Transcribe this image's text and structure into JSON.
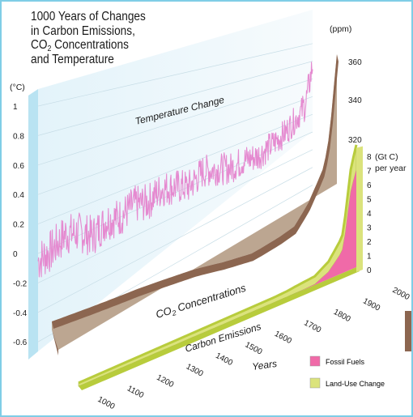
{
  "chart_data": {
    "type": "area",
    "title": [
      "1000 Years of Changes",
      "in Carbon Emissions,",
      "CO2 Concentrations",
      "and Temperature"
    ],
    "x_axis": {
      "label": "Years",
      "ticks": [
        1000,
        1100,
        1200,
        1300,
        1400,
        1500,
        1600,
        1700,
        1800,
        1900,
        2000
      ],
      "range": [
        1000,
        2000
      ]
    },
    "temperature": {
      "label": "Temperature Change",
      "unit": "(°C)",
      "ticks": [
        "1",
        "0.8",
        "0.6",
        "0.4",
        "0.2",
        "0",
        "-0.2",
        "-0.4",
        "-0.6"
      ],
      "range": [
        -0.6,
        1.0
      ],
      "color": "#e58ad0",
      "keypoints": [
        [
          1000,
          -0.05
        ],
        [
          1050,
          -0.02
        ],
        [
          1100,
          0.05
        ],
        [
          1150,
          0.02
        ],
        [
          1200,
          -0.05
        ],
        [
          1250,
          0.02
        ],
        [
          1300,
          0.0
        ],
        [
          1350,
          0.05
        ],
        [
          1400,
          0.02
        ],
        [
          1450,
          0.08
        ],
        [
          1500,
          0.05
        ],
        [
          1550,
          0.0
        ],
        [
          1600,
          0.08
        ],
        [
          1650,
          0.05
        ],
        [
          1700,
          0.0
        ],
        [
          1750,
          0.02
        ],
        [
          1800,
          0.0
        ],
        [
          1850,
          0.05
        ],
        [
          1900,
          0.12
        ],
        [
          1950,
          0.25
        ],
        [
          1975,
          0.35
        ],
        [
          2000,
          0.75
        ]
      ]
    },
    "co2": {
      "label": "CO2 Concentrations",
      "unit": "(ppm)",
      "ticks": [
        320,
        340,
        360
      ],
      "color": "#8c6650",
      "keypoints": [
        [
          1000,
          280
        ],
        [
          1100,
          281
        ],
        [
          1200,
          282
        ],
        [
          1300,
          283
        ],
        [
          1400,
          282
        ],
        [
          1500,
          281
        ],
        [
          1600,
          278
        ],
        [
          1700,
          277
        ],
        [
          1800,
          282
        ],
        [
          1850,
          285
        ],
        [
          1900,
          296
        ],
        [
          1950,
          311
        ],
        [
          1960,
          317
        ],
        [
          1970,
          325
        ],
        [
          1980,
          338
        ],
        [
          1990,
          354
        ],
        [
          2000,
          369
        ]
      ]
    },
    "emissions": {
      "label": "Carbon Emissions",
      "unit": "(Gt C)",
      "unit2": "per year",
      "ticks": [
        0,
        1,
        2,
        3,
        4,
        5,
        6,
        7,
        8
      ],
      "range": [
        0,
        8
      ],
      "series": [
        {
          "name": "Fossil Fuels",
          "color": "#f06aa8",
          "values": [
            [
              1000,
              0
            ],
            [
              1750,
              0
            ],
            [
              1800,
              0.01
            ],
            [
              1850,
              0.05
            ],
            [
              1900,
              0.5
            ],
            [
              1920,
              0.9
            ],
            [
              1940,
              1.3
            ],
            [
              1950,
              1.6
            ],
            [
              1960,
              2.6
            ],
            [
              1970,
              4.0
            ],
            [
              1980,
              5.3
            ],
            [
              1990,
              6.0
            ],
            [
              2000,
              6.6
            ]
          ]
        },
        {
          "name": "Land-Use Change",
          "color": "#dbe37c",
          "values": [
            [
              1000,
              0.25
            ],
            [
              1700,
              0.35
            ],
            [
              1750,
              0.4
            ],
            [
              1800,
              0.5
            ],
            [
              1850,
              0.55
            ],
            [
              1900,
              0.7
            ],
            [
              1950,
              1.0
            ],
            [
              1960,
              1.2
            ],
            [
              1970,
              1.3
            ],
            [
              1980,
              1.5
            ],
            [
              1990,
              1.6
            ],
            [
              2000,
              1.7
            ]
          ]
        }
      ]
    },
    "legend": {
      "position": "bottom-right"
    }
  }
}
